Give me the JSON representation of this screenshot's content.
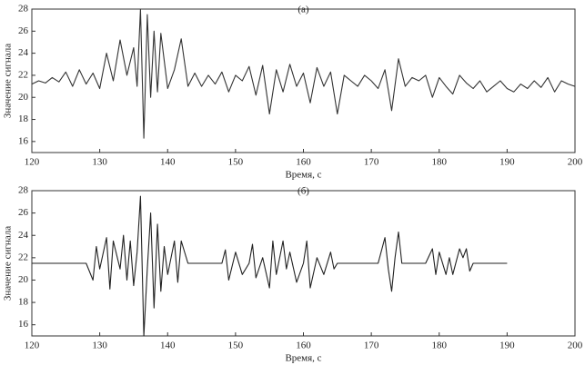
{
  "chart_data": [
    {
      "type": "line",
      "annotation": "(а)",
      "xlabel": "Время, с",
      "ylabel": "Значение сигнала",
      "color": "#333333",
      "xlim": [
        120,
        200
      ],
      "ylim": [
        15,
        28
      ],
      "xticks": [
        120,
        130,
        140,
        150,
        160,
        170,
        180,
        190,
        200
      ],
      "yticks": [
        16,
        18,
        20,
        22,
        24,
        26,
        28
      ],
      "x": [
        120,
        121,
        122,
        123,
        124,
        125,
        126,
        127,
        128,
        129,
        130,
        131,
        132,
        133,
        134,
        135,
        135.5,
        136,
        136.5,
        137,
        137.5,
        138,
        138.5,
        139,
        140,
        141,
        142,
        143,
        144,
        145,
        146,
        147,
        148,
        149,
        150,
        151,
        152,
        153,
        154,
        155,
        156,
        157,
        158,
        159,
        160,
        161,
        162,
        163,
        164,
        165,
        166,
        167,
        168,
        169,
        170,
        171,
        172,
        173,
        174,
        175,
        176,
        177,
        178,
        179,
        180,
        181,
        182,
        183,
        184,
        185,
        186,
        187,
        188,
        189,
        190,
        191,
        192,
        193,
        194,
        195,
        196,
        197,
        198,
        199,
        200
      ],
      "values": [
        21.2,
        21.5,
        21.3,
        21.8,
        21.4,
        22.3,
        21.0,
        22.5,
        21.2,
        22.2,
        20.8,
        24.0,
        21.5,
        25.2,
        22.0,
        24.5,
        21.0,
        28.0,
        16.3,
        27.5,
        20.0,
        26.0,
        20.5,
        25.8,
        20.8,
        22.5,
        25.3,
        21.0,
        22.2,
        21.0,
        22.0,
        21.2,
        22.3,
        20.5,
        22.0,
        21.5,
        22.8,
        20.2,
        22.9,
        18.5,
        22.5,
        20.5,
        23.0,
        21.0,
        22.2,
        19.5,
        22.7,
        21.0,
        22.3,
        18.5,
        22.0,
        21.5,
        21.0,
        22.0,
        21.5,
        20.8,
        22.5,
        18.8,
        23.5,
        21.0,
        21.8,
        21.5,
        22.0,
        20.0,
        21.8,
        21.0,
        20.3,
        22.0,
        21.3,
        20.8,
        21.5,
        20.5,
        21.0,
        21.5,
        20.8,
        20.5,
        21.2,
        20.8,
        21.5,
        20.9,
        21.8,
        20.5,
        21.5,
        21.2,
        21.0
      ]
    },
    {
      "type": "line",
      "annotation": "(б)",
      "xlabel": "Время, с",
      "ylabel": "Значение сигнала",
      "color": "#222222",
      "xlim": [
        120,
        200
      ],
      "ylim": [
        15,
        28
      ],
      "xticks": [
        120,
        130,
        140,
        150,
        160,
        170,
        180,
        190,
        200
      ],
      "yticks": [
        16,
        18,
        20,
        22,
        24,
        26,
        28
      ],
      "x": [
        120,
        128,
        129,
        129.5,
        130,
        131,
        131.5,
        132,
        133,
        133.5,
        134,
        134.5,
        135,
        135.5,
        136,
        136.5,
        137,
        137.5,
        138,
        138.5,
        139,
        139.5,
        140,
        141,
        141.5,
        142,
        143,
        148,
        148.5,
        149,
        150,
        151,
        152,
        152.5,
        153,
        154,
        155,
        155.5,
        156,
        157,
        157.5,
        158,
        159,
        160,
        160.5,
        161,
        162,
        163,
        164,
        164.5,
        165,
        171,
        172,
        172.5,
        173,
        173.5,
        174,
        174.5,
        175,
        178,
        179,
        179.5,
        180,
        181,
        181.5,
        182,
        183,
        183.5,
        184,
        184.5,
        185,
        190
      ],
      "values": [
        21.5,
        21.5,
        20.0,
        23.0,
        21.0,
        23.8,
        19.2,
        23.5,
        21.0,
        24.0,
        20.0,
        23.5,
        19.5,
        22.5,
        27.5,
        15.0,
        21.0,
        26.0,
        17.5,
        25.0,
        19.0,
        23.0,
        20.5,
        23.5,
        19.8,
        23.5,
        21.5,
        21.5,
        22.7,
        20.0,
        22.5,
        20.5,
        21.5,
        23.2,
        20.2,
        22.0,
        19.3,
        23.5,
        20.5,
        23.5,
        21.0,
        22.5,
        19.8,
        21.5,
        23.5,
        19.3,
        22.0,
        20.5,
        22.5,
        21.0,
        21.5,
        21.5,
        23.8,
        21.0,
        19.0,
        22.0,
        24.3,
        21.5,
        21.5,
        21.5,
        22.8,
        20.5,
        22.5,
        20.5,
        22.0,
        20.5,
        22.8,
        22.0,
        22.8,
        20.8,
        21.5,
        21.5
      ]
    }
  ]
}
